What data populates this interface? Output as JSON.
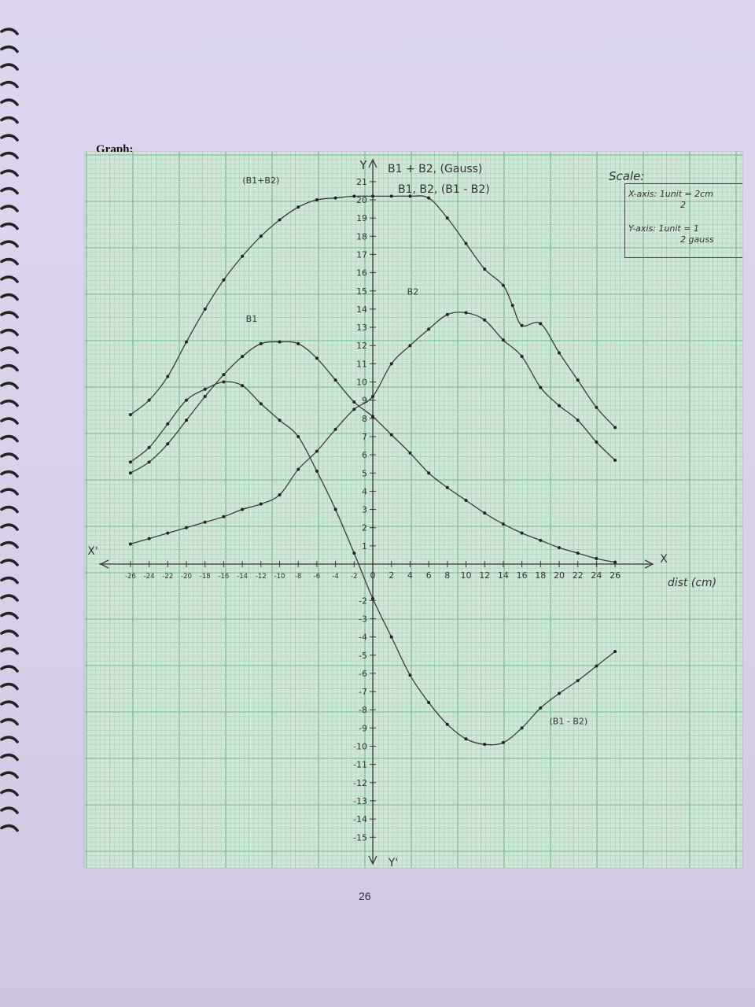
{
  "heading": "Graph:",
  "page_number": "26",
  "scale": {
    "title": "Scale:",
    "x_axis": "X-axis: 1unit = 2cm",
    "x_axis_sub": "2",
    "y_axis": "Y-axis: 1unit = 1",
    "y_axis_sub": "2    gauss"
  },
  "colors": {
    "paper": "#cfe7d7",
    "grid_minor": "#9fcdb0",
    "grid_major": "#6fb48a",
    "ink": "#3a3a3a"
  },
  "chart_data": {
    "type": "line",
    "title": "B1 + B2, (Gauss)",
    "subtitle": "B1, B2, (B1 - B2)",
    "xlabel": "dist (cm)",
    "ylabel": "Y",
    "x_axis_name": "X",
    "x_axis_neg_name": "X'",
    "y_axis_neg_name": "Y'",
    "xlim": [
      -26,
      30
    ],
    "ylim": [
      -15,
      22
    ],
    "grid": true,
    "x_ticks": [
      -26,
      -24,
      -22,
      -20,
      -18,
      -16,
      -14,
      -12,
      -10,
      -8,
      -6,
      -4,
      -2,
      0,
      2,
      4,
      6,
      8,
      10,
      12,
      14,
      16,
      18,
      20,
      22,
      24,
      26
    ],
    "x_tick_labels": [
      "-26",
      "-24",
      "-22",
      "-20",
      "-18",
      "-16",
      "-14",
      "-12",
      "-10",
      "-8",
      "-6",
      "-4",
      "-2",
      "0",
      "2",
      "4",
      "6",
      "8",
      "10",
      "12",
      "14",
      "16",
      "18",
      "20",
      "22",
      "24",
      "26"
    ],
    "y_ticks": [
      21,
      20,
      19,
      18,
      17,
      16,
      15,
      14,
      13,
      12,
      11,
      10,
      9,
      8,
      7,
      6,
      5,
      4,
      3,
      2,
      1,
      -2,
      -3,
      -4,
      -5,
      -6,
      -7,
      -8,
      -9,
      -10,
      -11,
      -12,
      -13,
      -14,
      -15
    ],
    "y_tick_labels": [
      "21",
      "20",
      "19",
      "18",
      "17",
      "16",
      "15",
      "14",
      "13",
      "12",
      "11",
      "10",
      "9",
      "8",
      "7",
      "6",
      "5",
      "4",
      "3",
      "2",
      "1",
      "-2",
      "-3",
      "-4",
      "-5",
      "-6",
      "-7",
      "-8",
      "-9",
      "-10",
      "-11",
      "-12",
      "-13",
      "-14",
      "-15"
    ],
    "series": [
      {
        "name": "(B1+B2)",
        "label_at": [
          -12,
          20.9
        ],
        "x": [
          -26,
          -24,
          -22,
          -20,
          -18,
          -16,
          -14,
          -12,
          -10,
          -8,
          -6,
          -4,
          -2,
          0,
          2,
          4,
          6,
          8,
          10,
          12,
          14,
          15,
          16,
          18,
          20,
          22,
          24,
          26
        ],
        "y": [
          8.2,
          9.0,
          10.3,
          12.2,
          14.0,
          15.6,
          16.9,
          18.0,
          18.9,
          19.6,
          20.0,
          20.1,
          20.2,
          20.2,
          20.2,
          20.2,
          20.1,
          19.0,
          17.6,
          16.2,
          15.3,
          14.2,
          13.1,
          13.2,
          11.6,
          10.1,
          8.6,
          7.5
        ]
      },
      {
        "name": "B1",
        "label_at": [
          -13,
          13.3
        ],
        "x": [
          -26,
          -24,
          -22,
          -20,
          -18,
          -16,
          -14,
          -12,
          -10,
          -8,
          -6,
          -4,
          -2,
          0,
          2,
          4,
          6,
          8,
          10,
          12,
          14,
          16,
          18,
          20,
          22,
          24,
          26
        ],
        "y": [
          5.0,
          5.6,
          6.6,
          7.9,
          9.2,
          10.4,
          11.4,
          12.1,
          12.2,
          12.1,
          11.3,
          10.1,
          8.9,
          8.1,
          7.1,
          6.1,
          5.0,
          4.2,
          3.5,
          2.8,
          2.2,
          1.7,
          1.3,
          0.9,
          0.6,
          0.3,
          0.1
        ]
      },
      {
        "name": "B2",
        "label_at": [
          4.3,
          14.8
        ],
        "x": [
          -26,
          -24,
          -22,
          -20,
          -18,
          -16,
          -14,
          -12,
          -10,
          -8,
          -6,
          -4,
          -2,
          0,
          2,
          4,
          6,
          8,
          10,
          12,
          14,
          16,
          18,
          20,
          22,
          24,
          26
        ],
        "y": [
          1.1,
          1.4,
          1.7,
          2.0,
          2.3,
          2.6,
          3.0,
          3.3,
          3.8,
          5.2,
          6.2,
          7.4,
          8.5,
          9.2,
          11.0,
          12.0,
          12.9,
          13.7,
          13.8,
          13.4,
          12.3,
          11.4,
          9.7,
          8.7,
          7.9,
          6.7,
          5.7
        ]
      },
      {
        "name": "(B1 - B2)",
        "label_at": [
          21,
          -8.8
        ],
        "x": [
          -26,
          -24,
          -22,
          -20,
          -18,
          -16,
          -14,
          -12,
          -10,
          -8,
          -6,
          -4,
          -2,
          0,
          2,
          4,
          6,
          8,
          10,
          12,
          14,
          16,
          18,
          20,
          22,
          24,
          26
        ],
        "y": [
          5.6,
          6.4,
          7.7,
          9.0,
          9.6,
          10.0,
          9.8,
          8.8,
          7.9,
          7.0,
          5.1,
          3.0,
          0.6,
          -1.9,
          -4.0,
          -6.1,
          -7.6,
          -8.8,
          -9.6,
          -9.9,
          -9.8,
          -9.0,
          -7.9,
          -7.1,
          -6.4,
          -5.6,
          -4.8
        ]
      }
    ]
  }
}
